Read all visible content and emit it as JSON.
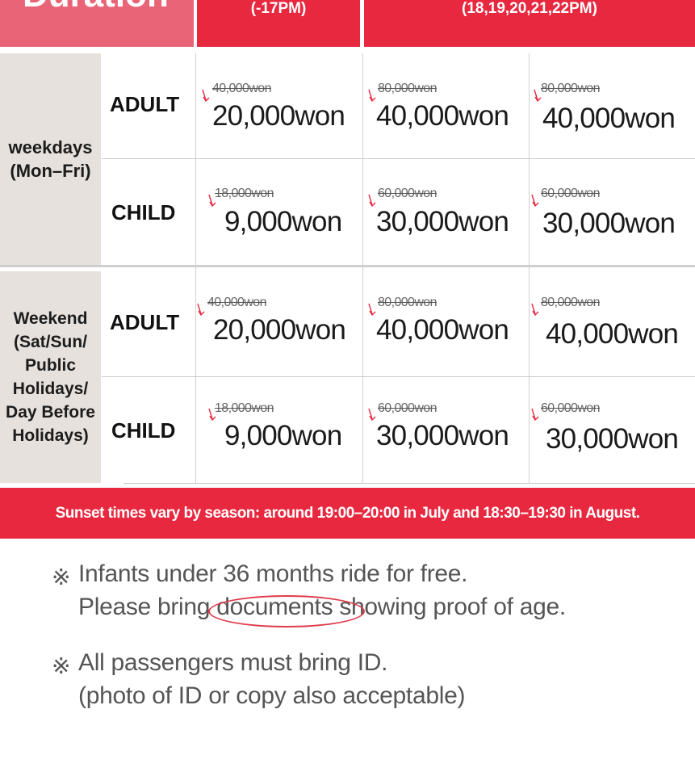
{
  "header": {
    "duration_label": "Duration",
    "col1_time": "(-17PM)",
    "col2_time": "(18,19,20,21,22PM)"
  },
  "groups": {
    "weekdays": "weekdays (Mon–Fri)",
    "weekend_lines": [
      "Weekend",
      "(Sat/Sun/",
      "Public",
      "Holidays/",
      "Day Before",
      "Holidays)"
    ]
  },
  "rows": {
    "wd_adult": {
      "type": "ADULT",
      "prices": [
        {
          "old": "40,000won",
          "new": "20,000won"
        },
        {
          "old": "80,000won",
          "new": "40,000won"
        },
        {
          "old": "80,000won",
          "new": "40,000won"
        }
      ]
    },
    "wd_child": {
      "type": "CHILD",
      "prices": [
        {
          "old": "18,000won",
          "new": "9,000won"
        },
        {
          "old": "60,000won",
          "new": "30,000won"
        },
        {
          "old": "60,000won",
          "new": "30,000won"
        }
      ]
    },
    "we_adult": {
      "type": "ADULT",
      "prices": [
        {
          "old": "40,000won",
          "new": "20,000won"
        },
        {
          "old": "80,000won",
          "new": "40,000won"
        },
        {
          "old": "80,000won",
          "new": "40,000won"
        }
      ]
    },
    "we_child": {
      "type": "CHILD",
      "prices": [
        {
          "old": "18,000won",
          "new": "9,000won"
        },
        {
          "old": "60,000won",
          "new": "30,000won"
        },
        {
          "old": "60,000won",
          "new": "30,000won"
        }
      ]
    }
  },
  "banner": "Sunset times vary by season: around 19:00–20:00 in July and 18:30–19:30 in August.",
  "notes": {
    "mark": "※",
    "note1_line1": "Infants under 36 months ride for free.",
    "note1_line2_pre": "Please bring ",
    "note1_line2_circled": "documents",
    "note1_line2_post": " showing proof of age.",
    "note2_line1": "All passengers must bring ID.",
    "note2_line2": "(photo of ID or copy also acceptable)"
  },
  "colors": {
    "accent_red": "#e8283f",
    "header_pink": "#e86476",
    "group_bg": "#e6e1dd"
  }
}
